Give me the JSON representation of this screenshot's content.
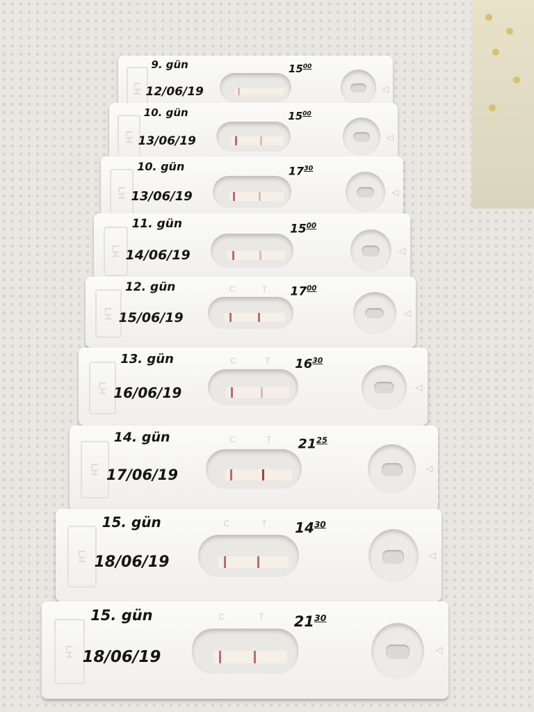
{
  "strip_label": "LH",
  "window_labels": {
    "control": "C",
    "test": "T"
  },
  "strips": [
    {
      "day": "9. gün",
      "date": "12/06/19",
      "hour": "15",
      "minute": "00",
      "control_line": "faint",
      "test_line": "none"
    },
    {
      "day": "10. gün",
      "date": "13/06/19",
      "hour": "15",
      "minute": "00",
      "control_line": "visible",
      "test_line": "faint"
    },
    {
      "day": "10. gün",
      "date": "13/06/19",
      "hour": "17",
      "minute": "30",
      "control_line": "visible",
      "test_line": "faint"
    },
    {
      "day": "11. gün",
      "date": "14/06/19",
      "hour": "15",
      "minute": "00",
      "control_line": "visible",
      "test_line": "faint"
    },
    {
      "day": "12. gün",
      "date": "15/06/19",
      "hour": "17",
      "minute": "00",
      "control_line": "visible",
      "test_line": "visible"
    },
    {
      "day": "13. gün",
      "date": "16/06/19",
      "hour": "16",
      "minute": "30",
      "control_line": "visible",
      "test_line": "faint"
    },
    {
      "day": "14. gün",
      "date": "17/06/19",
      "hour": "21",
      "minute": "25",
      "control_line": "visible",
      "test_line": "strong"
    },
    {
      "day": "15. gün",
      "date": "18/06/19",
      "hour": "14",
      "minute": "30",
      "control_line": "visible",
      "test_line": "visible"
    },
    {
      "day": "15. gün",
      "date": "18/06/19",
      "hour": "21",
      "minute": "30",
      "control_line": "visible",
      "test_line": "visible"
    }
  ],
  "colors": {
    "line": "#a0404a",
    "strip": "#f7f7f5",
    "ink": "#151515"
  }
}
